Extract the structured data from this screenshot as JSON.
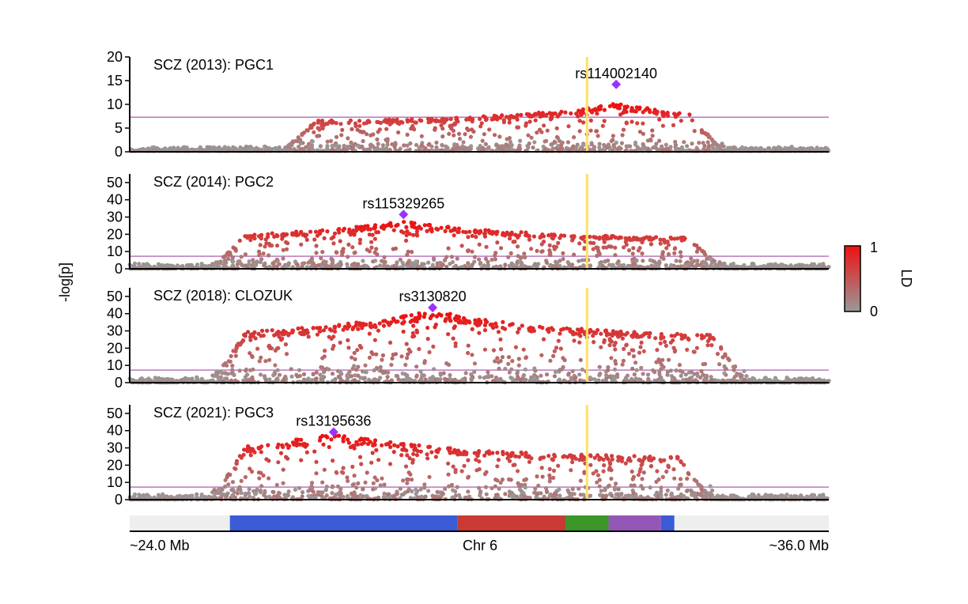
{
  "colors": {
    "point_low": "#999999",
    "point_high": "#ee1111",
    "lead_snp": "#9933ff",
    "significance_line": "#bb77bb",
    "highlight_line": "#ffe066",
    "axis": "#000000"
  },
  "chart_data": {
    "type": "scatter",
    "ylabel": "-log[p]",
    "x_range_mb": [
      24.0,
      36.0
    ],
    "significance_threshold": 7.3,
    "highlight_position_mb": 31.85,
    "x_axis": {
      "left_label": "~24.0 Mb",
      "center_label": "Chr 6",
      "right_label": "~36.0 Mb"
    },
    "colorbar": {
      "title": "LD",
      "min_label": "0",
      "max_label": "1"
    },
    "panels": [
      {
        "title": "SCZ (2013): PGC1",
        "ylim": [
          0,
          20
        ],
        "yticks": [
          "0",
          "5",
          "10",
          "15",
          "20"
        ],
        "lead_snp": {
          "name": "rs114002140",
          "x": 32.35,
          "y": 14.2
        },
        "signal_peak": 10,
        "signal_region": [
          26.6,
          34.2
        ]
      },
      {
        "title": "SCZ (2014): PGC2",
        "ylim": [
          0,
          55
        ],
        "yticks": [
          "0",
          "10",
          "20",
          "30",
          "40",
          "50"
        ],
        "lead_snp": {
          "name": "rs115329265",
          "x": 28.7,
          "y": 31.5
        },
        "signal_peak": 27,
        "signal_region": [
          25.4,
          34.2
        ]
      },
      {
        "title": "SCZ (2018): CLOZUK",
        "ylim": [
          0,
          55
        ],
        "yticks": [
          "0",
          "10",
          "20",
          "30",
          "40",
          "50"
        ],
        "lead_snp": {
          "name": "rs3130820",
          "x": 29.2,
          "y": 43.5
        },
        "signal_peak": 41,
        "signal_region": [
          25.4,
          34.6
        ]
      },
      {
        "title": "SCZ (2021): PGC3",
        "ylim": [
          0,
          55
        ],
        "yticks": [
          "0",
          "10",
          "20",
          "30",
          "40",
          "50"
        ],
        "lead_snp": {
          "name": "rs13195636",
          "x": 27.5,
          "y": 39.2
        },
        "signal_peak": 38,
        "signal_region": [
          25.4,
          34.0
        ]
      }
    ],
    "gene_track": [
      {
        "start": 24.0,
        "end": 25.72,
        "color": "#eeeeee"
      },
      {
        "start": 25.72,
        "end": 29.63,
        "color": "#3b5bd6"
      },
      {
        "start": 29.63,
        "end": 31.48,
        "color": "#c93a33"
      },
      {
        "start": 31.48,
        "end": 32.22,
        "color": "#3a9628"
      },
      {
        "start": 32.22,
        "end": 33.12,
        "color": "#9456b6"
      },
      {
        "start": 33.12,
        "end": 33.35,
        "color": "#3b5bd6"
      },
      {
        "start": 33.35,
        "end": 36.0,
        "color": "#eeeeee"
      }
    ]
  }
}
